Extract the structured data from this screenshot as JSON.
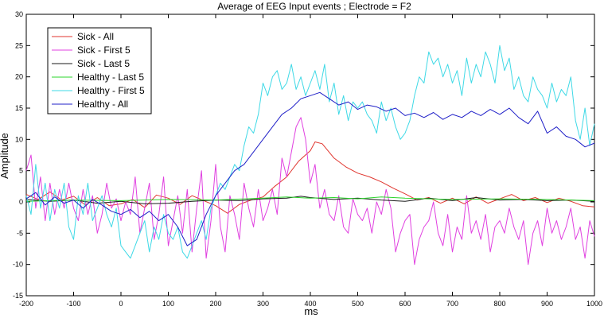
{
  "chart_data": {
    "type": "line",
    "title": "Average of EEG Input events ; Electrode = F2",
    "xlabel": "ms",
    "ylabel": "Amplitude",
    "xlim": [
      -200,
      1000
    ],
    "ylim": [
      -15,
      30
    ],
    "xticks": [
      -200,
      -100,
      0,
      100,
      200,
      300,
      400,
      500,
      600,
      700,
      800,
      900,
      1000
    ],
    "yticks": [
      -15,
      -10,
      -5,
      0,
      5,
      10,
      15,
      20,
      25,
      30
    ],
    "grid": false,
    "legend_position": "top-left",
    "series": [
      {
        "name": "Sick - All",
        "color": "#e0362f",
        "x": [
          -200,
          -175,
          -150,
          -125,
          -100,
          -75,
          -50,
          -25,
          0,
          25,
          50,
          75,
          100,
          125,
          150,
          175,
          200,
          225,
          250,
          275,
          300,
          325,
          350,
          375,
          400,
          410,
          425,
          450,
          475,
          500,
          525,
          550,
          575,
          600,
          625,
          650,
          675,
          700,
          725,
          750,
          775,
          800,
          825,
          850,
          875,
          900,
          925,
          950,
          975,
          1000
        ],
        "y": [
          1.2,
          0.4,
          1.6,
          0.3,
          0.9,
          -0.5,
          0.7,
          -0.6,
          -0.3,
          0.4,
          -0.9,
          1.1,
          0.6,
          -0.4,
          1.0,
          0.2,
          -0.6,
          -1.8,
          -0.4,
          0.3,
          0.8,
          2.5,
          4.0,
          6.5,
          8.2,
          9.6,
          9.3,
          7.0,
          5.6,
          4.6,
          4.0,
          3.2,
          2.2,
          1.3,
          0.3,
          0.7,
          -0.2,
          0.6,
          -0.3,
          0.8,
          -0.2,
          0.5,
          1.2,
          0.2,
          0.7,
          -0.1,
          0.6,
          0.1,
          -0.6,
          -0.8
        ]
      },
      {
        "name": "Sick - First 5",
        "color": "#e040e0",
        "x": [
          -200,
          -190,
          -180,
          -170,
          -160,
          -150,
          -140,
          -130,
          -120,
          -110,
          -100,
          -90,
          -80,
          -70,
          -60,
          -50,
          -40,
          -30,
          -20,
          -10,
          0,
          10,
          20,
          30,
          40,
          50,
          60,
          70,
          80,
          90,
          100,
          110,
          120,
          130,
          140,
          150,
          160,
          170,
          180,
          190,
          200,
          210,
          220,
          230,
          240,
          250,
          260,
          270,
          280,
          290,
          300,
          310,
          320,
          330,
          340,
          350,
          360,
          370,
          380,
          390,
          400,
          410,
          420,
          430,
          440,
          450,
          460,
          470,
          480,
          490,
          500,
          510,
          520,
          530,
          540,
          550,
          560,
          570,
          580,
          590,
          600,
          610,
          620,
          630,
          640,
          650,
          660,
          670,
          680,
          690,
          700,
          710,
          720,
          730,
          740,
          750,
          760,
          770,
          780,
          790,
          800,
          810,
          820,
          830,
          840,
          850,
          860,
          870,
          880,
          890,
          900,
          910,
          920,
          930,
          940,
          950,
          960,
          970,
          980,
          990,
          1000
        ],
        "y": [
          5,
          7.5,
          -1,
          4,
          -3,
          3,
          -2,
          2,
          -1,
          3,
          -1,
          -3,
          2,
          -2,
          1,
          -5,
          -2,
          3,
          -1,
          0.5,
          -3,
          0,
          -2,
          4,
          -5,
          -1,
          3,
          -6,
          -2,
          4,
          -7,
          -3,
          1,
          -5,
          2,
          -8,
          -1,
          5,
          -9,
          -3,
          6,
          -4,
          -8,
          1,
          -2,
          -6,
          3,
          -1,
          -4,
          2,
          -3,
          -1,
          2,
          -2,
          7,
          4,
          8,
          12,
          13.5,
          10,
          3,
          6,
          -1,
          2,
          -2,
          -3,
          1,
          -4,
          -5,
          0.5,
          -2,
          -3,
          -1,
          -5,
          0,
          -2,
          2,
          -1,
          -8,
          -5,
          -3,
          -2,
          -10,
          -6,
          -4,
          -3,
          0,
          -5,
          -7,
          -2,
          -8,
          -4,
          -6,
          1,
          -5,
          -3,
          -6,
          -2,
          -8,
          -4,
          -3,
          -5,
          -1,
          -4,
          -6,
          -3,
          -10,
          -5,
          -3,
          -7,
          -1,
          -5,
          -3,
          -6,
          -4,
          -1,
          -6,
          -4,
          -9,
          -3,
          -5.5
        ]
      },
      {
        "name": "Sick - Last 5",
        "color": "#1a1a1a",
        "x": [
          -200,
          -150,
          -100,
          -50,
          0,
          50,
          100,
          150,
          200,
          250,
          300,
          350,
          380,
          400,
          450,
          500,
          550,
          600,
          650,
          700,
          750,
          800,
          850,
          900,
          950,
          1000
        ],
        "y": [
          0.4,
          0.1,
          0.3,
          -0.2,
          0.1,
          -0.3,
          -0.2,
          0.1,
          0.3,
          0.2,
          0.5,
          0.6,
          0.9,
          0.7,
          0.4,
          0.6,
          0.3,
          0.1,
          0.6,
          0.2,
          0.7,
          0.3,
          0.4,
          0.2,
          0.3,
          0.1
        ]
      },
      {
        "name": "Healthy - Last 5",
        "color": "#2bd42b",
        "x": [
          -200,
          -100,
          0,
          100,
          200,
          300,
          350,
          400,
          450,
          500,
          550,
          600,
          650,
          700,
          800,
          900,
          1000
        ],
        "y": [
          0.1,
          0.3,
          0.2,
          0.4,
          0.3,
          0.6,
          0.8,
          0.6,
          0.7,
          0.5,
          0.8,
          0.6,
          0.5,
          0.4,
          0.5,
          0.4,
          0.2
        ]
      },
      {
        "name": "Healthy - First 5",
        "color": "#3fd9e6",
        "x": [
          -200,
          -190,
          -180,
          -170,
          -160,
          -150,
          -140,
          -130,
          -120,
          -110,
          -100,
          -90,
          -80,
          -70,
          -60,
          -50,
          -40,
          -30,
          -20,
          -10,
          0,
          10,
          20,
          30,
          40,
          50,
          60,
          70,
          80,
          90,
          100,
          110,
          120,
          130,
          140,
          150,
          160,
          170,
          180,
          190,
          200,
          210,
          220,
          230,
          240,
          250,
          260,
          270,
          280,
          290,
          300,
          310,
          320,
          330,
          340,
          350,
          360,
          370,
          380,
          390,
          400,
          410,
          420,
          430,
          440,
          450,
          460,
          470,
          480,
          490,
          500,
          510,
          520,
          530,
          540,
          550,
          560,
          570,
          580,
          590,
          600,
          610,
          620,
          630,
          640,
          650,
          660,
          670,
          680,
          690,
          700,
          710,
          720,
          730,
          740,
          750,
          760,
          770,
          780,
          790,
          800,
          810,
          820,
          830,
          840,
          850,
          860,
          870,
          880,
          890,
          900,
          910,
          920,
          930,
          940,
          950,
          960,
          970,
          980,
          990,
          1000
        ],
        "y": [
          1,
          -2,
          6,
          -1,
          3,
          -3,
          2,
          -1,
          3,
          -4,
          -6,
          1,
          -2,
          3,
          -3,
          -1,
          1,
          -2,
          -4,
          -1,
          -7,
          -8,
          -9,
          -7,
          -5,
          -3,
          -8,
          -4,
          -6,
          -2,
          -5,
          -6,
          -4,
          -8,
          -9,
          -7,
          -5,
          -3,
          -6,
          -1,
          1,
          3,
          2,
          4,
          6,
          5,
          9,
          12,
          11,
          14,
          19,
          17,
          20,
          21,
          18,
          19,
          22,
          18,
          20,
          17,
          19,
          21,
          18,
          22,
          16,
          19,
          14,
          17,
          13,
          16,
          15,
          16,
          14,
          13,
          11,
          16,
          13,
          15,
          12,
          10,
          11,
          13,
          17,
          20,
          19,
          24,
          22,
          23,
          20,
          22,
          19,
          21,
          17,
          23,
          19,
          22,
          20,
          24,
          22,
          19,
          25,
          21,
          23,
          18,
          20,
          17,
          16,
          20,
          18,
          17,
          15,
          19,
          16,
          18,
          17,
          20,
          13,
          10,
          15,
          9,
          12.5
        ]
      },
      {
        "name": "Healthy - All",
        "color": "#2020c8",
        "x": [
          -200,
          -180,
          -160,
          -140,
          -120,
          -100,
          -80,
          -60,
          -40,
          -20,
          0,
          20,
          40,
          60,
          80,
          100,
          120,
          140,
          160,
          180,
          200,
          220,
          240,
          260,
          280,
          300,
          320,
          340,
          360,
          380,
          400,
          420,
          440,
          460,
          480,
          500,
          520,
          540,
          560,
          580,
          600,
          620,
          640,
          660,
          680,
          700,
          720,
          740,
          760,
          780,
          800,
          820,
          840,
          860,
          880,
          900,
          920,
          940,
          960,
          980,
          1000
        ],
        "y": [
          0.5,
          1.5,
          -0.5,
          0.8,
          -0.2,
          0.3,
          -1,
          0.4,
          -0.5,
          -1.5,
          -2,
          -1.2,
          -2.5,
          -1.5,
          -3,
          -2,
          -4,
          -7,
          -6,
          -2,
          1,
          3,
          5,
          6,
          8,
          10,
          12,
          14,
          15,
          16.5,
          17,
          17.5,
          16.5,
          15.5,
          16,
          14.8,
          15.5,
          15.2,
          14.5,
          15,
          13.8,
          14.2,
          13.5,
          14.3,
          13.2,
          14,
          13.5,
          14.5,
          13.8,
          14.8,
          14,
          15,
          13.5,
          12.5,
          14.5,
          11,
          12,
          10.5,
          10,
          8.8,
          9.4
        ]
      }
    ]
  }
}
